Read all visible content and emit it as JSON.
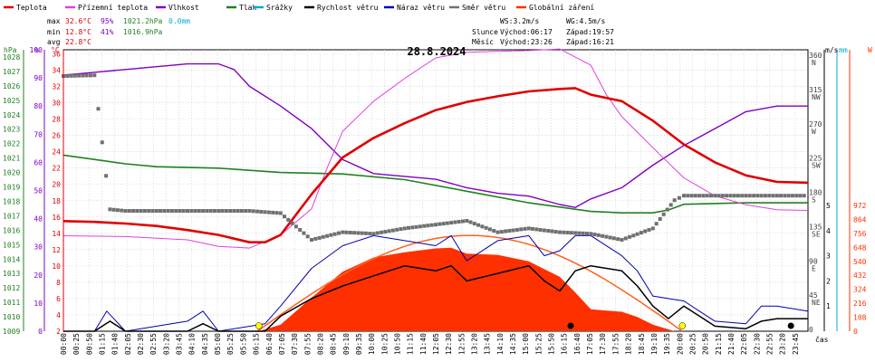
{
  "chart_data": {
    "type": "line",
    "title": "28.8.2024",
    "legend": [
      {
        "label": "Teplota",
        "color": "#e00000"
      },
      {
        "label": "Přízemní teplota",
        "color": "#e040e0"
      },
      {
        "label": "Vlhkost",
        "color": "#8000c0"
      },
      {
        "label": "Tlak",
        "color": "#208020"
      },
      {
        "label": "Srážky",
        "color": "#00a8d8"
      },
      {
        "label": "Rychlost větru",
        "color": "#000000"
      },
      {
        "label": "Náraz větru",
        "color": "#0000b0"
      },
      {
        "label": "Směr větru",
        "color": "#707070"
      },
      {
        "label": "Globální záření",
        "color": "#ff3000"
      }
    ],
    "stats": {
      "max": {
        "label": "max",
        "temp": "32.6°C",
        "hum": "95%",
        "press": "1021.2hPa",
        "rain": "0.0mm"
      },
      "min": {
        "label": "min",
        "temp": "12.8°C",
        "hum": "41%",
        "press": "1016.9hPa"
      },
      "avg": {
        "label": "avg",
        "temp": "22.8°C"
      }
    },
    "info": {
      "ws": "WS:3.2m/s",
      "wg": "WG:4.5m/s",
      "sun_label": "Slunce",
      "sunrise": "Východ:06:17",
      "sunset": "Západ:19:57",
      "moon_label": "Měsíc",
      "moonrise": "Východ:23:26",
      "moonset": "Západ:16:21"
    },
    "axes": {
      "hpa_unit": "hPa",
      "pct_unit": "%",
      "c_unit": "°C",
      "wind_unit": "m/s",
      "mm_unit": "mm",
      "w_unit": "W",
      "x_unit": "čas",
      "hpa_ticks": [
        "1028",
        "1027",
        "1026",
        "1025",
        "1024",
        "1023",
        "1022",
        "1021",
        "1020",
        "1019",
        "1018",
        "1017",
        "1016",
        "1015",
        "1014",
        "1013",
        "1012",
        "1011",
        "1010",
        "1009"
      ],
      "pct_ticks": [
        "100",
        "90",
        "80",
        "70",
        "60",
        "50",
        "40",
        "30",
        "20",
        "10",
        "0"
      ],
      "c_ticks": [
        "36",
        "34",
        "32",
        "30",
        "28",
        "26",
        "24",
        "22",
        "20",
        "18",
        "16",
        "14",
        "12",
        "10",
        "8",
        "6",
        "4",
        "2"
      ],
      "dir_ticks": [
        {
          "v": "360",
          "l": "N"
        },
        {
          "v": "315",
          "l": "NW"
        },
        {
          "v": "270",
          "l": "W"
        },
        {
          "v": "225",
          "l": "SW"
        },
        {
          "v": "180",
          "l": "S"
        },
        {
          "v": "135",
          "l": "SE"
        },
        {
          "v": "90",
          "l": "E"
        },
        {
          "v": "45",
          "l": "NE"
        },
        {
          "v": "0",
          "l": ""
        }
      ],
      "ms_ticks": [
        "5",
        "4",
        "3",
        "2",
        "1"
      ],
      "w_ticks": [
        "972",
        "864",
        "756",
        "648",
        "540",
        "432",
        "324",
        "216",
        "108",
        "0"
      ],
      "time_ticks": [
        "00:00",
        "00:25",
        "00:50",
        "01:15",
        "01:40",
        "02:05",
        "02:30",
        "02:55",
        "03:20",
        "03:45",
        "04:10",
        "04:35",
        "05:00",
        "05:25",
        "05:50",
        "06:15",
        "06:40",
        "07:05",
        "07:30",
        "07:55",
        "08:20",
        "08:45",
        "09:10",
        "09:35",
        "10:00",
        "10:25",
        "10:50",
        "11:15",
        "11:40",
        "12:05",
        "12:30",
        "12:55",
        "13:20",
        "13:45",
        "14:10",
        "14:35",
        "15:00",
        "15:25",
        "15:50",
        "16:15",
        "16:40",
        "17:05",
        "17:30",
        "17:55",
        "18:20",
        "18:45",
        "19:10",
        "19:35",
        "20:00",
        "20:25",
        "20:50",
        "21:15",
        "21:40",
        "22:05",
        "22:30",
        "22:55",
        "23:20",
        "23:45"
      ]
    },
    "series": {
      "temperature_c": [
        [
          0,
          15.5
        ],
        [
          1,
          15.4
        ],
        [
          2,
          15.2
        ],
        [
          3,
          14.9
        ],
        [
          4,
          14.4
        ],
        [
          5,
          13.8
        ],
        [
          6,
          12.9
        ],
        [
          6.5,
          12.9
        ],
        [
          7,
          13.8
        ],
        [
          8,
          18.8
        ],
        [
          9,
          23.3
        ],
        [
          10,
          25.7
        ],
        [
          11,
          27.5
        ],
        [
          12,
          29.1
        ],
        [
          13,
          30.1
        ],
        [
          14,
          30.8
        ],
        [
          15,
          31.4
        ],
        [
          16,
          31.7
        ],
        [
          16.5,
          31.8
        ],
        [
          17,
          31.0
        ],
        [
          18,
          30.2
        ],
        [
          19,
          27.8
        ],
        [
          20,
          24.9
        ],
        [
          21,
          22.7
        ],
        [
          22,
          21.1
        ],
        [
          23,
          20.3
        ],
        [
          24,
          20.2
        ]
      ],
      "ground_temp_c": [
        [
          0,
          13.7
        ],
        [
          2,
          13.6
        ],
        [
          4,
          13.2
        ],
        [
          5,
          12.4
        ],
        [
          6,
          12.2
        ],
        [
          7,
          13.8
        ],
        [
          8,
          17.0
        ],
        [
          8.5,
          22
        ],
        [
          9,
          26.5
        ],
        [
          10,
          30.2
        ],
        [
          11,
          33.0
        ],
        [
          12,
          35.5
        ],
        [
          13,
          36.2
        ],
        [
          14,
          36.3
        ],
        [
          15,
          36.4
        ],
        [
          16,
          36.6
        ],
        [
          17,
          34.6
        ],
        [
          17.5,
          31
        ],
        [
          18,
          28.3
        ],
        [
          19,
          24.5
        ],
        [
          20,
          20.8
        ],
        [
          21,
          18.6
        ],
        [
          22,
          17.5
        ],
        [
          23,
          16.9
        ],
        [
          24,
          16.8
        ]
      ],
      "humidity_pct": [
        [
          0,
          91
        ],
        [
          1,
          92
        ],
        [
          2,
          93
        ],
        [
          3,
          94
        ],
        [
          4,
          95
        ],
        [
          5,
          95
        ],
        [
          5.5,
          93
        ],
        [
          6,
          87
        ],
        [
          7,
          80
        ],
        [
          8,
          72
        ],
        [
          9,
          61
        ],
        [
          10,
          56
        ],
        [
          11,
          55
        ],
        [
          12,
          54
        ],
        [
          13,
          51
        ],
        [
          14,
          49
        ],
        [
          15,
          48
        ],
        [
          16,
          45
        ],
        [
          16.5,
          44
        ],
        [
          17,
          47
        ],
        [
          18,
          51
        ],
        [
          19,
          59
        ],
        [
          20,
          66
        ],
        [
          21,
          72
        ],
        [
          22,
          78
        ],
        [
          23,
          80
        ],
        [
          24,
          80
        ]
      ],
      "pressure_hpa": [
        [
          0,
          1021.2
        ],
        [
          1,
          1020.9
        ],
        [
          2,
          1020.6
        ],
        [
          3,
          1020.4
        ],
        [
          5,
          1020.3
        ],
        [
          7,
          1020.0
        ],
        [
          9,
          1019.9
        ],
        [
          11,
          1019.5
        ],
        [
          13,
          1018.7
        ],
        [
          15,
          1017.9
        ],
        [
          16,
          1017.6
        ],
        [
          17,
          1017.3
        ],
        [
          18,
          1017.2
        ],
        [
          19,
          1017.2
        ],
        [
          19.5,
          1017.4
        ],
        [
          20,
          1017.8
        ],
        [
          22,
          1017.9
        ],
        [
          24,
          1017.9
        ]
      ],
      "wind_speed_ms": [
        [
          0,
          0
        ],
        [
          1,
          0
        ],
        [
          1.5,
          0.4
        ],
        [
          2,
          0
        ],
        [
          4,
          0
        ],
        [
          4.5,
          0.3
        ],
        [
          5,
          0
        ],
        [
          6.5,
          0
        ],
        [
          7,
          0.6
        ],
        [
          8,
          1.3
        ],
        [
          9,
          1.8
        ],
        [
          10,
          2.2
        ],
        [
          11,
          2.6
        ],
        [
          12,
          2.4
        ],
        [
          12.5,
          2.6
        ],
        [
          13,
          2.0
        ],
        [
          14,
          2.3
        ],
        [
          15,
          2.6
        ],
        [
          15.5,
          2.0
        ],
        [
          16,
          1.6
        ],
        [
          16.5,
          2.4
        ],
        [
          17,
          2.6
        ],
        [
          18,
          2.4
        ],
        [
          18.5,
          1.8
        ],
        [
          19,
          1.0
        ],
        [
          19.5,
          0.5
        ],
        [
          20,
          1.0
        ],
        [
          20.5,
          0.6
        ],
        [
          21,
          0.2
        ],
        [
          22,
          0.1
        ],
        [
          22.5,
          0.4
        ],
        [
          23,
          0.5
        ],
        [
          24,
          0.5
        ]
      ],
      "wind_gust_ms": [
        [
          0,
          0
        ],
        [
          1,
          0
        ],
        [
          1.4,
          0.8
        ],
        [
          2,
          0
        ],
        [
          4,
          0.4
        ],
        [
          4.5,
          0.8
        ],
        [
          5,
          0
        ],
        [
          6.5,
          0.3
        ],
        [
          7,
          1.0
        ],
        [
          8,
          2.5
        ],
        [
          9,
          3.4
        ],
        [
          10,
          3.8
        ],
        [
          11,
          3.6
        ],
        [
          12,
          3.4
        ],
        [
          12.5,
          3.8
        ],
        [
          13,
          2.8
        ],
        [
          14,
          3.6
        ],
        [
          15,
          3.8
        ],
        [
          15.5,
          3.0
        ],
        [
          16,
          3.2
        ],
        [
          16.5,
          3.8
        ],
        [
          17,
          3.8
        ],
        [
          18,
          3.0
        ],
        [
          18.5,
          2.4
        ],
        [
          19,
          1.4
        ],
        [
          20,
          1.2
        ],
        [
          20.5,
          0.8
        ],
        [
          21,
          0.4
        ],
        [
          22,
          0.3
        ],
        [
          22.5,
          1.0
        ],
        [
          23,
          1.0
        ],
        [
          24,
          0.8
        ]
      ],
      "wind_dir_deg": [
        [
          0,
          335
        ],
        [
          1,
          336
        ],
        [
          1.5,
          160
        ],
        [
          2,
          158
        ],
        [
          4,
          158
        ],
        [
          6,
          158
        ],
        [
          7,
          155
        ],
        [
          8,
          120
        ],
        [
          9,
          130
        ],
        [
          10,
          128
        ],
        [
          11,
          135
        ],
        [
          12,
          140
        ],
        [
          13,
          145
        ],
        [
          14,
          130
        ],
        [
          15,
          135
        ],
        [
          16,
          130
        ],
        [
          17,
          128
        ],
        [
          18,
          120
        ],
        [
          19,
          135
        ],
        [
          19.7,
          172
        ],
        [
          20,
          178
        ],
        [
          24,
          178
        ]
      ],
      "solar_w": [
        [
          6.3,
          0
        ],
        [
          7,
          50
        ],
        [
          8,
          260
        ],
        [
          9,
          460
        ],
        [
          10,
          570
        ],
        [
          11,
          610
        ],
        [
          12,
          640
        ],
        [
          12.5,
          645
        ],
        [
          13,
          600
        ],
        [
          14,
          590
        ],
        [
          15,
          540
        ],
        [
          15.5,
          480
        ],
        [
          16,
          420
        ],
        [
          16.5,
          300
        ],
        [
          17,
          170
        ],
        [
          18,
          150
        ],
        [
          18.5,
          110
        ],
        [
          19,
          50
        ],
        [
          19.7,
          0
        ]
      ],
      "solar_clear_sky_w": [
        [
          6.25,
          0
        ],
        [
          8,
          380
        ],
        [
          10,
          660
        ],
        [
          12.5,
          740
        ],
        [
          15,
          650
        ],
        [
          17,
          420
        ],
        [
          19,
          130
        ],
        [
          19.95,
          0
        ]
      ]
    }
  }
}
